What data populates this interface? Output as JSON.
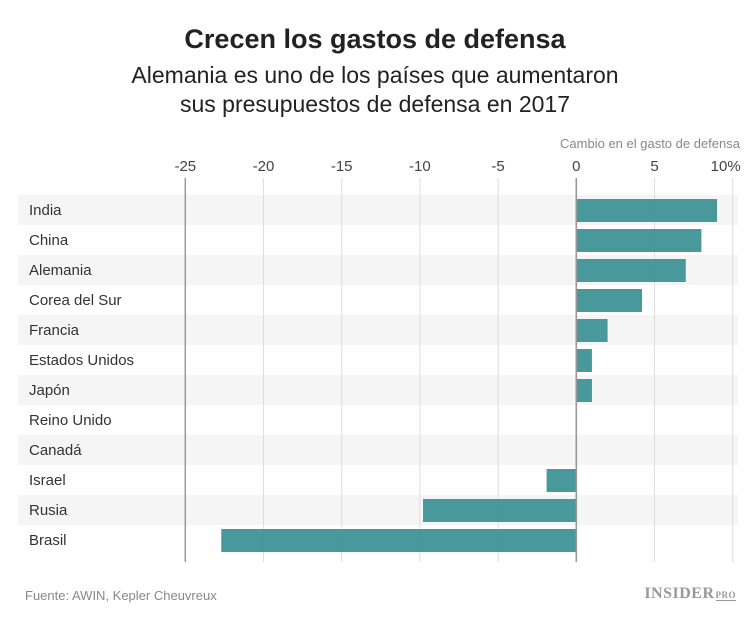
{
  "chart_data": {
    "type": "bar",
    "orientation": "horizontal",
    "title": "Crecen los gastos de defensa",
    "subtitle": [
      "Alemania es uno de los países que aumentaron",
      "sus presupuestos de defensa en 2017"
    ],
    "xlabel": "Cambio en el gasto de defensa",
    "xlim": [
      -25,
      10
    ],
    "xticks": [
      -25,
      -20,
      -15,
      -10,
      -5,
      0,
      5,
      10
    ],
    "xtick_labels": [
      "-25",
      "-20",
      "-15",
      "-10",
      "-5",
      "0",
      "5",
      "10%"
    ],
    "categories": [
      "India",
      "China",
      "Alemania",
      "Corea del Sur",
      "Francia",
      "Estados Unidos",
      "Japón",
      "Reino Unido",
      "Canadá",
      "Israel",
      "Rusia",
      "Brasil"
    ],
    "values": [
      9.0,
      8.0,
      7.0,
      4.2,
      2.0,
      1.0,
      1.0,
      0,
      0,
      -1.9,
      -9.8,
      -22.7
    ],
    "bar_color": "#3a8f94",
    "grid": true
  },
  "footer": {
    "source": "Fuente: AWIN, Kepler Cheuvreux",
    "logo": "INSIDER",
    "logo_suffix": "PRO"
  }
}
